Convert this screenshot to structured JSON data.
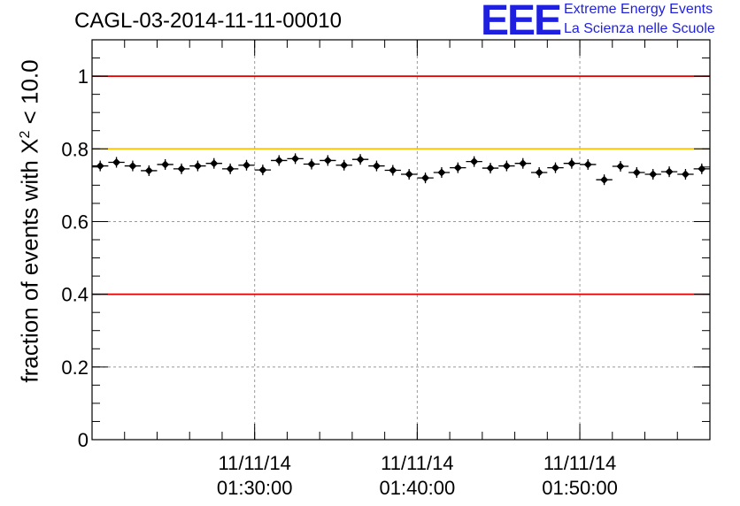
{
  "title": "CAGL-03-2014-11-11-00010",
  "logo": {
    "mark": "EEE",
    "line1": "Extreme Energy Events",
    "line2": "La Scienza nelle Scuole"
  },
  "colors": {
    "accent": "#1f1fe0",
    "red_line": "#e00000",
    "yellow_line": "#ffc000",
    "points": "#000000"
  },
  "chart_data": {
    "type": "scatter",
    "ylabel_prefix": "fraction of events with X",
    "ylabel_sup": "2",
    "ylabel_suffix": " < 10.0",
    "xlabel": "",
    "ylim": [
      0,
      1.1
    ],
    "y_ticks": [
      "0",
      "0.2",
      "0.4",
      "0.6",
      "0.8",
      "1"
    ],
    "y_tick_values": [
      0,
      0.2,
      0.4,
      0.6,
      0.8,
      1.0
    ],
    "x_time_start": "01:20:00",
    "x_time_end": "01:58:00",
    "x_ticks": [
      {
        "date": "11/11/14",
        "time": "01:30:00"
      },
      {
        "date": "11/11/14",
        "time": "01:40:00"
      },
      {
        "date": "11/11/14",
        "time": "01:50:00"
      }
    ],
    "grid": true,
    "reference_lines": [
      {
        "y": 1.0,
        "color": "red"
      },
      {
        "y": 0.8,
        "color": "yellow"
      },
      {
        "y": 0.4,
        "color": "red"
      }
    ],
    "series": [
      {
        "x": [
          "01:20:30",
          "01:21:30",
          "01:22:30",
          "01:23:30",
          "01:24:30",
          "01:25:30",
          "01:26:30",
          "01:27:30",
          "01:28:30",
          "01:29:30",
          "01:30:30",
          "01:31:30",
          "01:32:30",
          "01:33:30",
          "01:34:30",
          "01:35:30",
          "01:36:30",
          "01:37:30",
          "01:38:30",
          "01:39:30",
          "01:40:30",
          "01:41:30",
          "01:42:30",
          "01:43:30",
          "01:44:30",
          "01:45:30",
          "01:46:30",
          "01:47:30",
          "01:48:30",
          "01:49:30",
          "01:50:30",
          "01:51:30",
          "01:52:30",
          "01:53:30",
          "01:54:30",
          "01:55:30",
          "01:56:30",
          "01:57:30"
        ],
        "values": [
          0.753,
          0.763,
          0.753,
          0.74,
          0.757,
          0.745,
          0.753,
          0.76,
          0.745,
          0.755,
          0.742,
          0.768,
          0.773,
          0.758,
          0.768,
          0.755,
          0.771,
          0.753,
          0.741,
          0.73,
          0.72,
          0.735,
          0.748,
          0.765,
          0.747,
          0.753,
          0.76,
          0.735,
          0.748,
          0.76,
          0.757,
          0.715,
          0.752,
          0.735,
          0.73,
          0.737,
          0.73,
          0.745
        ]
      }
    ]
  }
}
